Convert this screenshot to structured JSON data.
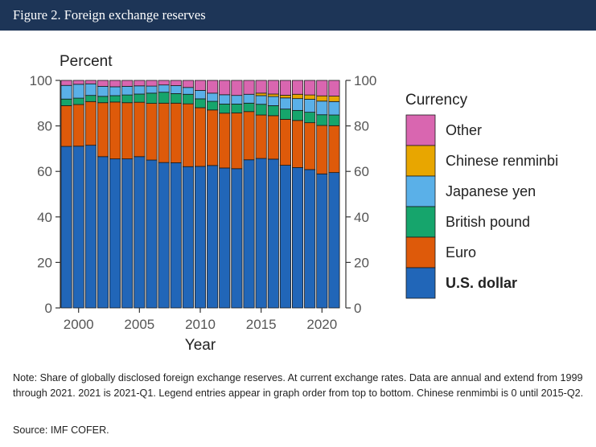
{
  "figure": {
    "title": "Figure 2. Foreign exchange reserves",
    "note": "Note: Share of globally disclosed foreign exchange reserves. At current exchange rates. Data are annual and extend from 1999 through 2021. 2021 is 2021-Q1. Legend entries appear in graph order from top to bottom. Chinese renmimbi is 0 until 2015-Q2.",
    "source": "Source: IMF COFER."
  },
  "chart_data": {
    "type": "bar",
    "stacked": true,
    "title": "",
    "ylabel": "Percent",
    "xlabel": "Year",
    "ylim": [
      0,
      100
    ],
    "yticks": [
      0,
      20,
      40,
      60,
      80,
      100
    ],
    "xticks": [
      2000,
      2005,
      2010,
      2015,
      2020
    ],
    "xlim": [
      1998.5,
      2021.5
    ],
    "dual_y_axis": true,
    "grid": false,
    "legend": {
      "title": "Currency",
      "position": "right"
    },
    "categories": [
      1999,
      2000,
      2001,
      2002,
      2003,
      2004,
      2005,
      2006,
      2007,
      2008,
      2009,
      2010,
      2011,
      2012,
      2013,
      2014,
      2015,
      2016,
      2017,
      2018,
      2019,
      2020,
      2021
    ],
    "series": [
      {
        "name": "U.S. dollar",
        "color": "#2166b8",
        "values": [
          71.0,
          71.1,
          71.5,
          66.5,
          65.5,
          65.5,
          66.5,
          65.0,
          63.9,
          63.8,
          62.1,
          62.2,
          62.6,
          61.5,
          61.2,
          65.1,
          65.7,
          65.4,
          62.7,
          61.7,
          60.8,
          58.9,
          59.5
        ]
      },
      {
        "name": "Euro",
        "color": "#de5a0a",
        "values": [
          17.9,
          18.3,
          19.2,
          23.7,
          25.0,
          24.7,
          23.9,
          24.9,
          26.1,
          26.2,
          27.6,
          25.8,
          24.4,
          24.1,
          24.5,
          21.2,
          19.1,
          19.1,
          20.2,
          20.7,
          20.6,
          21.3,
          20.6
        ]
      },
      {
        "name": "British pound",
        "color": "#16a56c",
        "values": [
          2.9,
          2.8,
          2.7,
          2.8,
          2.8,
          3.4,
          3.6,
          4.5,
          4.8,
          4.2,
          4.2,
          3.9,
          3.8,
          4.0,
          3.9,
          3.7,
          4.7,
          4.4,
          4.5,
          4.4,
          4.6,
          4.7,
          4.7
        ]
      },
      {
        "name": "Japanese yen",
        "color": "#5ab0e8",
        "values": [
          6.0,
          6.1,
          5.1,
          4.4,
          3.9,
          3.8,
          3.6,
          3.1,
          3.2,
          3.5,
          3.0,
          3.7,
          3.6,
          4.1,
          3.8,
          3.9,
          3.8,
          4.0,
          4.9,
          5.2,
          5.7,
          6.0,
          5.9
        ]
      },
      {
        "name": "Chinese renminbi",
        "color": "#e8a600",
        "values": [
          0,
          0,
          0,
          0,
          0,
          0,
          0,
          0,
          0,
          0,
          0,
          0,
          0,
          0,
          0,
          0,
          1.1,
          1.1,
          1.2,
          1.9,
          1.9,
          2.3,
          2.4
        ]
      },
      {
        "name": "Other",
        "color": "#d966b0",
        "values": [
          2.2,
          1.7,
          1.5,
          2.6,
          2.8,
          2.6,
          2.4,
          2.5,
          2.0,
          2.3,
          3.1,
          4.4,
          5.6,
          6.3,
          6.6,
          6.1,
          5.6,
          6.0,
          6.5,
          6.1,
          6.4,
          6.8,
          6.9
        ]
      }
    ]
  }
}
